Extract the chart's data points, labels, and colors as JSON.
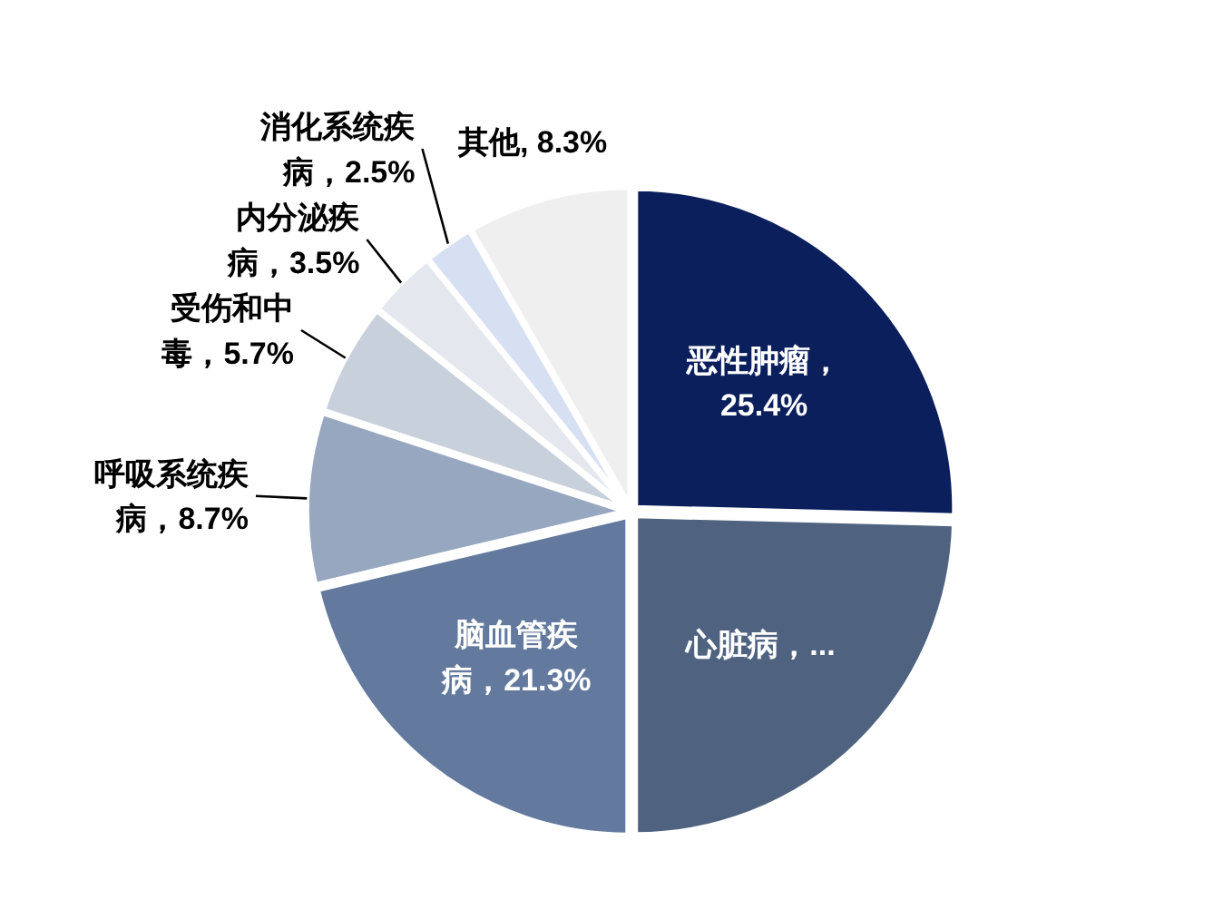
{
  "chart_data": {
    "type": "pie",
    "categories": [
      "恶性肿瘤",
      "心脏病",
      "脑血管疾病",
      "呼吸系统疾病",
      "受伤和中毒",
      "内分泌疾病",
      "消化系统疾病",
      "其他"
    ],
    "values": [
      25.4,
      24.6,
      21.3,
      8.7,
      5.7,
      3.5,
      2.5,
      8.3
    ],
    "value_labels": [
      "，25.4%",
      "，...",
      "，21.3%",
      "，8.7%",
      "，5.7%",
      "，3.5%",
      "，2.5%",
      ", 8.3%"
    ],
    "colors": [
      "#0b1f5c",
      "#4f6380",
      "#637a9e",
      "#97a7bf",
      "#c8d0db",
      "#e4e7ee",
      "#d7e0f2",
      "#efefef"
    ]
  }
}
